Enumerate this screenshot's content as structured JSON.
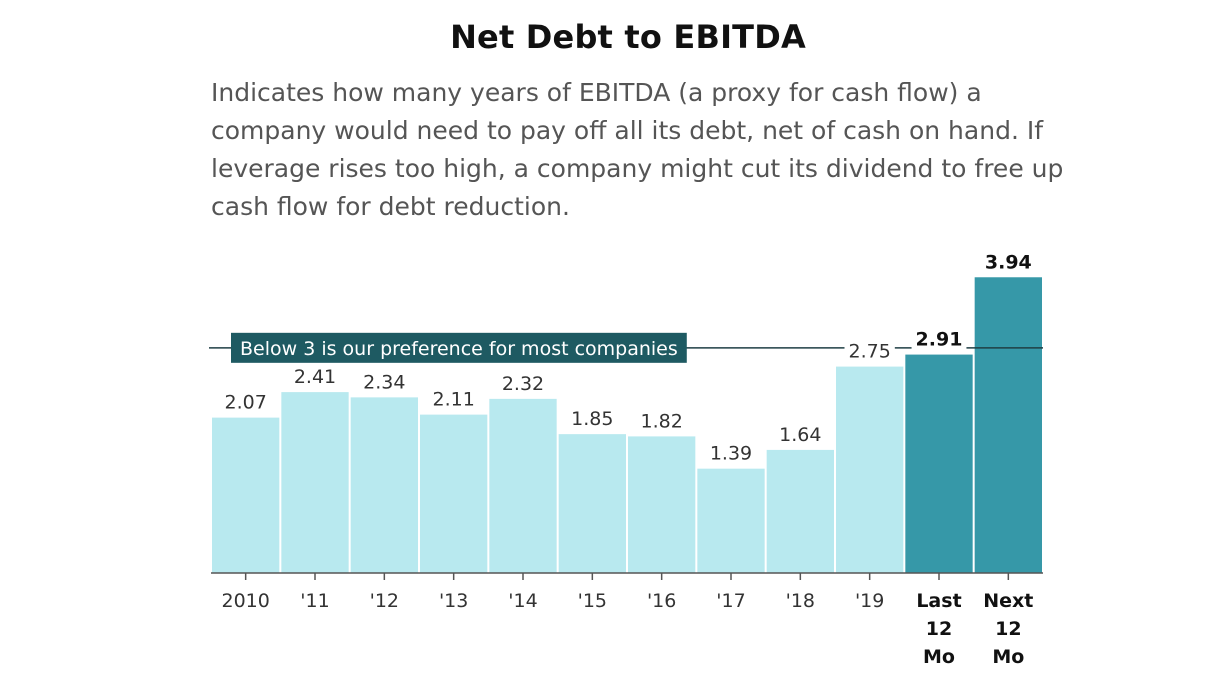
{
  "title": "Net Debt to EBITDA",
  "subtitle": "Indicates how many years of EBITDA (a proxy for cash flow) a company would need to pay off all its debt, net of cash on hand. If leverage rises too high, a company might cut its dividend to free up cash flow for debt reduction.",
  "chart_data": {
    "type": "bar",
    "title": "Net Debt to EBITDA",
    "categories": [
      "2010",
      "'11",
      "'12",
      "'13",
      "'14",
      "'15",
      "'16",
      "'17",
      "'18",
      "'19",
      "Last 12 Mo",
      "Next 12 Mo"
    ],
    "category_lines": [
      [
        "2010"
      ],
      [
        "'11"
      ],
      [
        "'12"
      ],
      [
        "'13"
      ],
      [
        "'14"
      ],
      [
        "'15"
      ],
      [
        "'16"
      ],
      [
        "'17"
      ],
      [
        "'18"
      ],
      [
        "'19"
      ],
      [
        "Last",
        "12",
        "Mo"
      ],
      [
        "Next",
        "12",
        "Mo"
      ]
    ],
    "values": [
      2.07,
      2.41,
      2.34,
      2.11,
      2.32,
      1.85,
      1.82,
      1.39,
      1.64,
      2.75,
      2.91,
      3.94
    ],
    "data_labels": [
      "2.07",
      "2.41",
      "2.34",
      "2.11",
      "2.32",
      "1.85",
      "1.82",
      "1.39",
      "1.64",
      "2.75",
      "2.91",
      "3.94"
    ],
    "highlighted": [
      false,
      false,
      false,
      false,
      false,
      false,
      false,
      false,
      false,
      false,
      true,
      true
    ],
    "ylim": [
      0,
      4.25
    ],
    "reference_line": {
      "value": 3,
      "label": "Below 3 is our preference for most companies"
    },
    "colors": {
      "bar": "#b8e9ef",
      "bar_highlight": "#3698a8",
      "label_box": "#1e5a62",
      "axis": "#555555"
    },
    "grid": false,
    "legend": "none"
  }
}
